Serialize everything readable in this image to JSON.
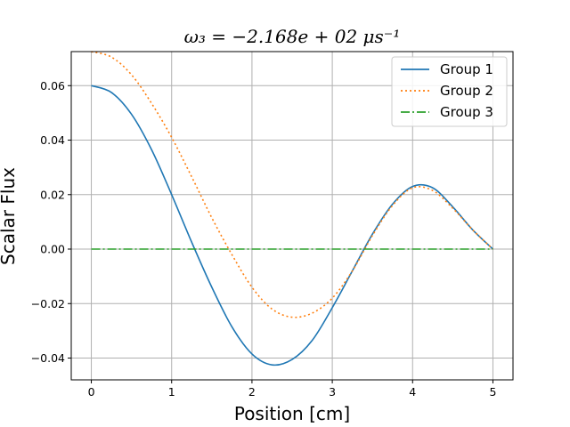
{
  "chart_data": {
    "type": "line",
    "title": "ω₃ = −2.168e + 02 μs⁻¹",
    "xlabel": "Position [cm]",
    "ylabel": "Scalar Flux",
    "xlim": [
      -0.25,
      5.25
    ],
    "ylim": [
      -0.048,
      0.0725
    ],
    "xticks": [
      0,
      1,
      2,
      3,
      4,
      5
    ],
    "xtick_labels": [
      "0",
      "1",
      "2",
      "3",
      "4",
      "5"
    ],
    "yticks": [
      -0.04,
      -0.02,
      0.0,
      0.02,
      0.04,
      0.06
    ],
    "ytick_labels": [
      "−0.04",
      "−0.02",
      "0.00",
      "0.02",
      "0.04",
      "0.06"
    ],
    "grid": true,
    "legend": "top-right",
    "x": [
      0,
      0.25,
      0.5,
      0.75,
      1.0,
      1.25,
      1.5,
      1.75,
      2.0,
      2.25,
      2.5,
      2.75,
      3.0,
      3.25,
      3.5,
      3.75,
      4.0,
      4.25,
      4.5,
      4.75,
      5.0
    ],
    "series": [
      {
        "name": "Group 1",
        "color": "#1f77b4",
        "style": "solid",
        "values": [
          0.06,
          0.0575,
          0.0495,
          0.0365,
          0.02,
          0.0025,
          -0.014,
          -0.0285,
          -0.0385,
          -0.0425,
          -0.0405,
          -0.0335,
          -0.0215,
          -0.008,
          0.0055,
          0.0165,
          0.023,
          0.0225,
          0.0155,
          0.007,
          0.0
        ]
      },
      {
        "name": "Group 2",
        "color": "#ff7f0e",
        "style": "dotted",
        "values": [
          0.0725,
          0.0705,
          0.064,
          0.0535,
          0.041,
          0.0265,
          0.0115,
          -0.002,
          -0.014,
          -0.022,
          -0.025,
          -0.0235,
          -0.018,
          -0.008,
          0.005,
          0.016,
          0.0225,
          0.0215,
          0.015,
          0.007,
          0.0
        ]
      },
      {
        "name": "Group 3",
        "color": "#2ca02c",
        "style": "dashdot",
        "values": [
          0,
          0,
          0,
          0,
          0,
          0,
          0,
          0,
          0,
          0,
          0,
          0,
          0,
          0,
          0,
          0,
          0,
          0,
          0,
          0,
          0
        ]
      }
    ]
  }
}
